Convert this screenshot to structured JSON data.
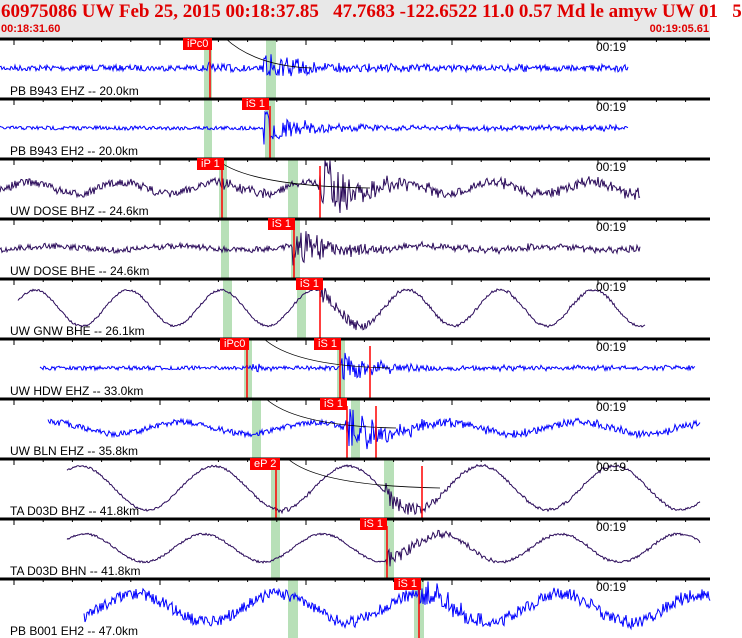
{
  "header": {
    "title": "60975086 UW Feb 25, 2015 00:18:37.85   47.7683 -122.6522 11.0 0.57 Md le amyw UW 01   5",
    "start_time": "00:18:31.60",
    "end_time": "00:19:05.61"
  },
  "minute_mark": "00:19",
  "colors": {
    "header_text": "#e00000",
    "pick": "#ff0000",
    "window": "#b8e0b8",
    "trace_eh": "#0000ff",
    "trace_bh": "#2a0a5a"
  },
  "traces": [
    {
      "label": "PB B943 EHZ -- 20.0km",
      "picks": [
        "iPc0"
      ],
      "color": "trace_eh"
    },
    {
      "label": "PB B943 EH2 -- 20.0km",
      "picks": [
        "iS 1"
      ],
      "color": "trace_eh"
    },
    {
      "label": "UW DOSE BHZ -- 24.6km",
      "picks": [
        "iP 1"
      ],
      "color": "trace_bh"
    },
    {
      "label": "UW DOSE BHE -- 24.6km",
      "picks": [
        "iS 1"
      ],
      "color": "trace_bh"
    },
    {
      "label": "UW GNW BHE -- 26.1km",
      "picks": [
        "iS 1"
      ],
      "color": "trace_bh"
    },
    {
      "label": "UW HDW EHZ -- 33.0km",
      "picks": [
        "iPc0",
        "iS 1"
      ],
      "color": "trace_eh"
    },
    {
      "label": "UW BLN EHZ -- 35.8km",
      "picks": [
        "iS 1"
      ],
      "color": "trace_eh"
    },
    {
      "label": "TA D03D BHZ -- 41.8km",
      "picks": [
        "eP 2"
      ],
      "color": "trace_bh"
    },
    {
      "label": "TA D03D BHN -- 41.8km",
      "picks": [
        "iS 1"
      ],
      "color": "trace_bh"
    },
    {
      "label": "PB B001 EH2 -- 47.0km",
      "picks": [
        "iS 1"
      ],
      "color": "trace_eh"
    }
  ]
}
